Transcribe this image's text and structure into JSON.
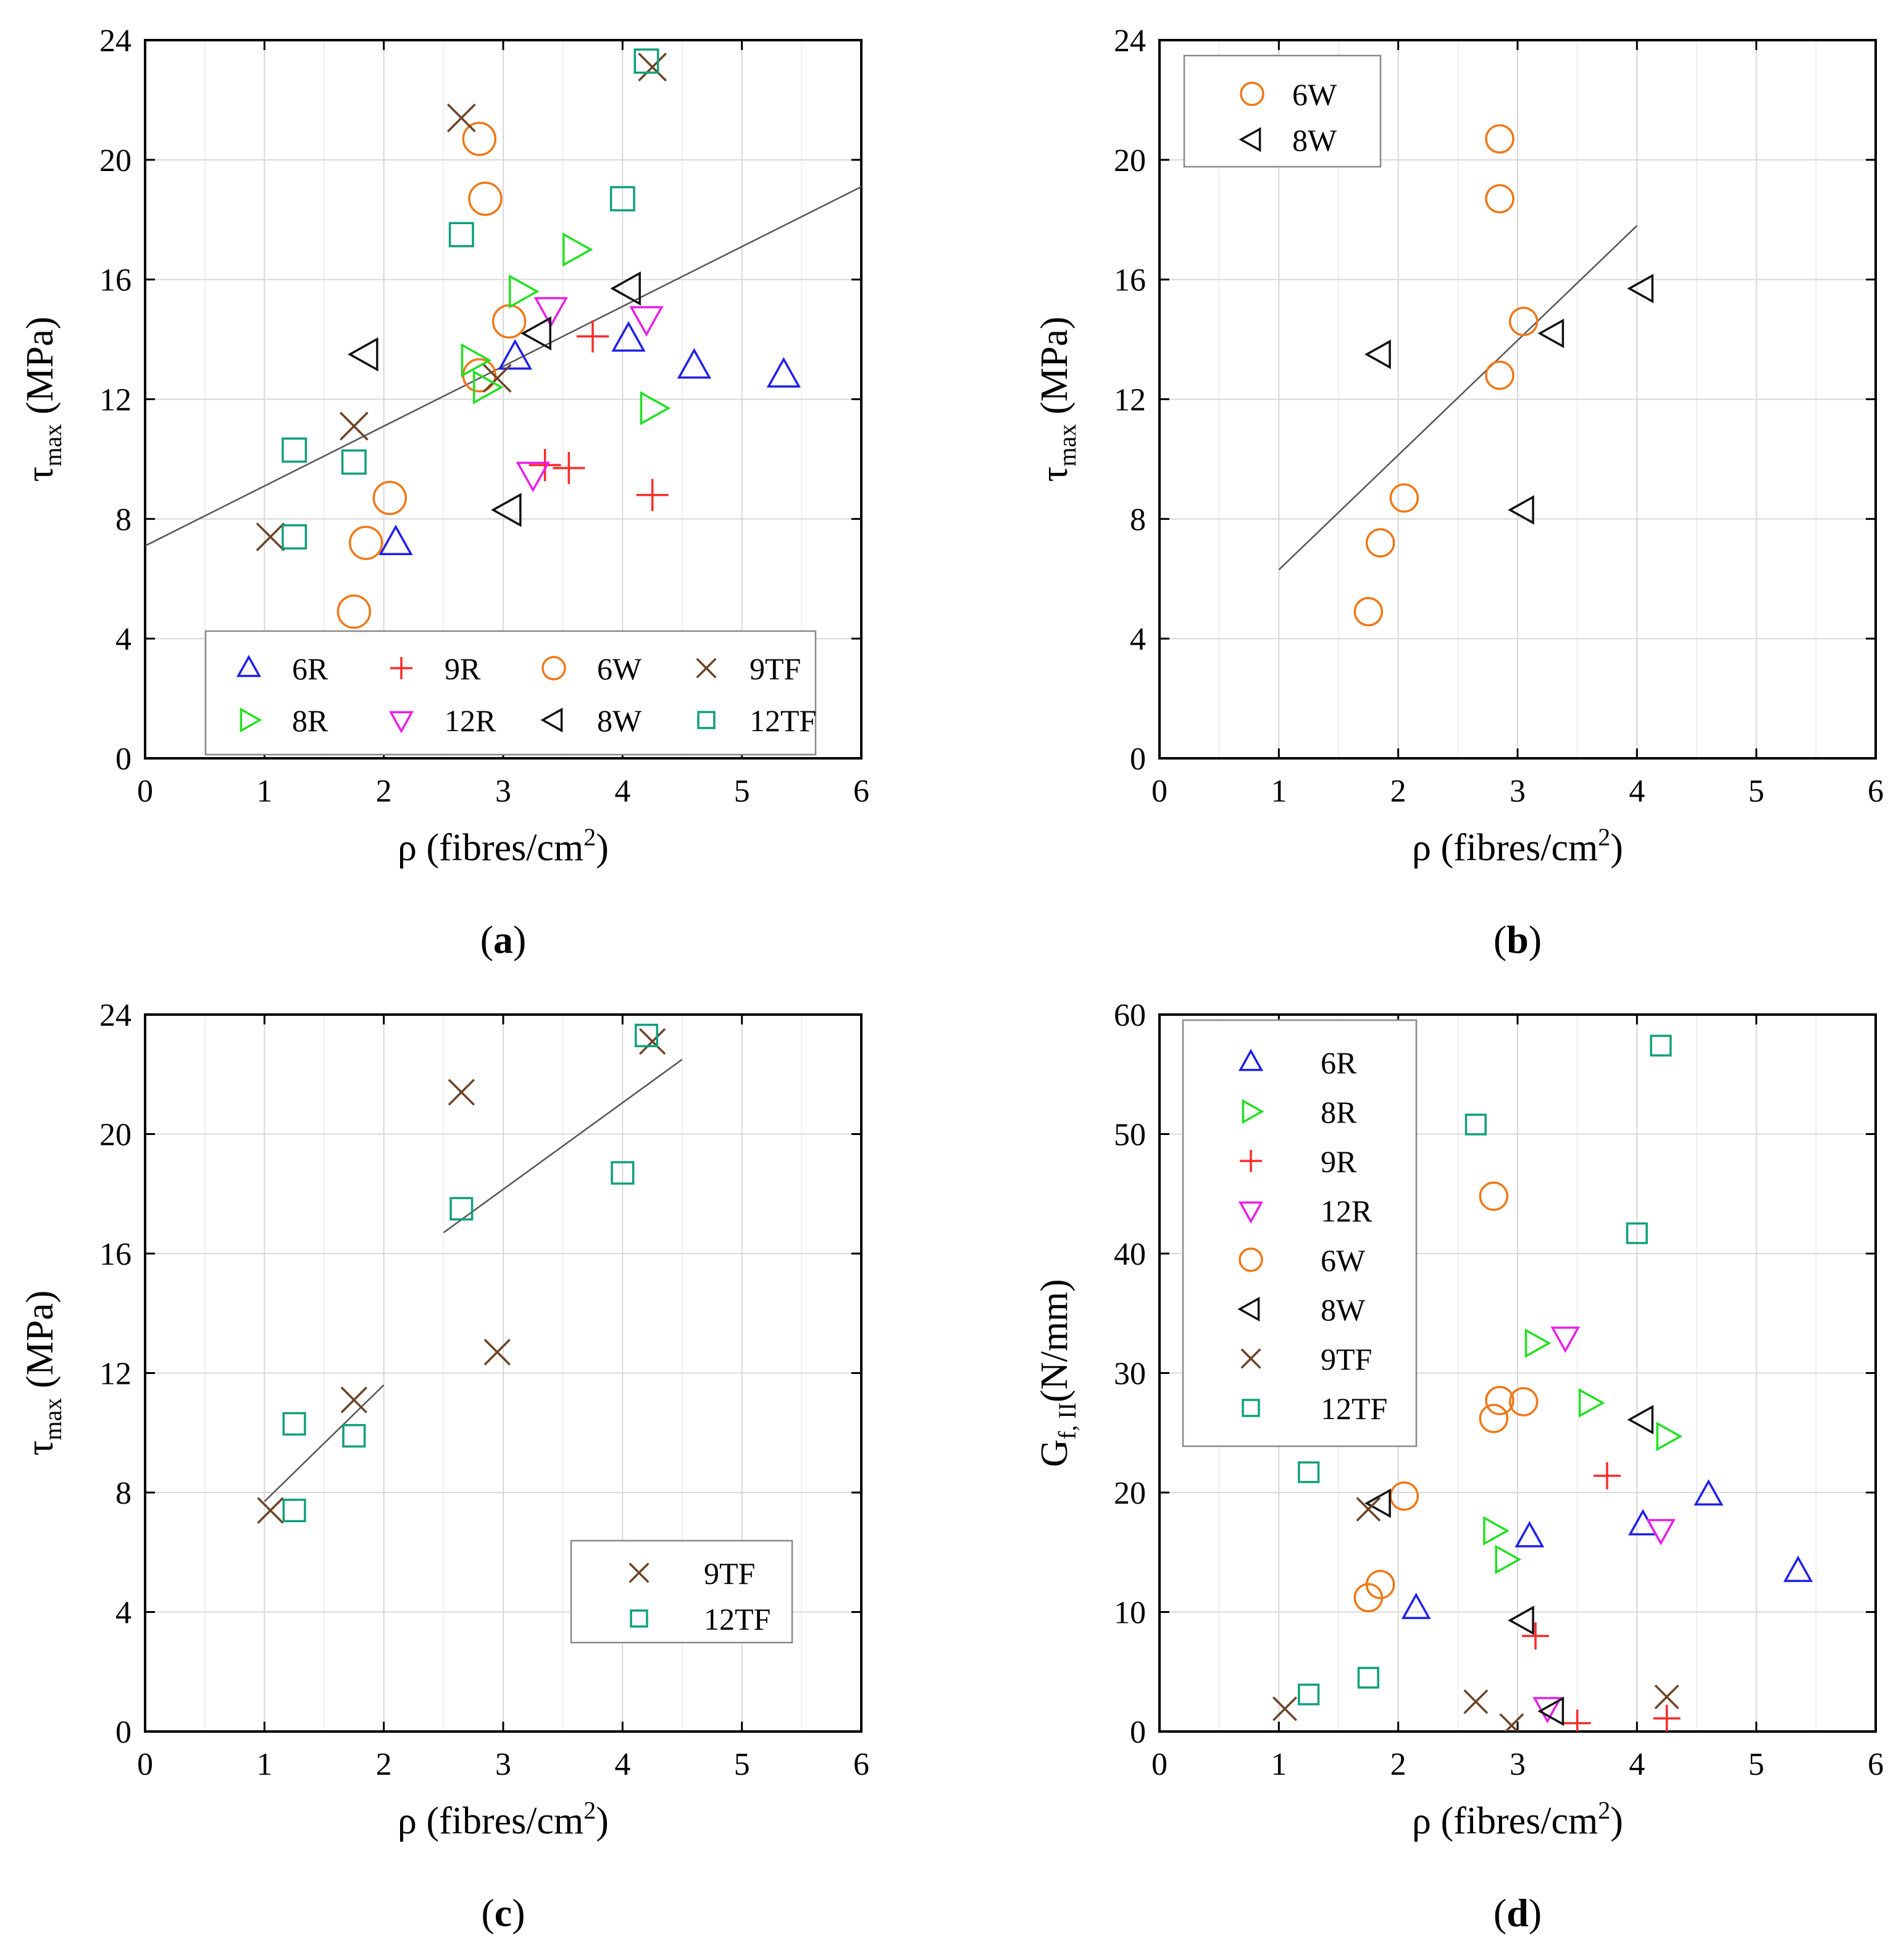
{
  "colors": {
    "6R": "#1f1fe8",
    "8R": "#22e022",
    "9R": "#ff2a2a",
    "12R": "#e81ee8",
    "6W": "#f07818",
    "8W": "#111111",
    "9TF": "#6b4226",
    "12TF": "#10a078",
    "fit": "#555555",
    "grid": "#d8d8d8"
  },
  "series_markers": {
    "6R": "triangle-up",
    "8R": "triangle-right",
    "9R": "plus",
    "12R": "triangle-down",
    "6W": "circle",
    "8W": "triangle-left",
    "9TF": "cross",
    "12TF": "square"
  },
  "chart_data": [
    {
      "id": "a",
      "type": "scatter",
      "caption_prefix": "(",
      "caption_letter": "a",
      "caption_suffix": ")",
      "xlabel_main": "ρ (fibres/cm",
      "xlabel_sup": "2",
      "xlabel_end": ")",
      "ylabel_main": "τ",
      "ylabel_sub": "max",
      "ylabel_end": " (MPa)",
      "xlim": [
        0,
        6
      ],
      "ylim": [
        0,
        24
      ],
      "xticks": [
        0,
        1,
        2,
        3,
        4,
        5,
        6
      ],
      "yticks": [
        0,
        4,
        8,
        12,
        16,
        20,
        24
      ],
      "x_tick_labels": [
        "0",
        "1",
        "2",
        "3",
        "4",
        "5",
        "6"
      ],
      "y_tick_labels": [
        "0",
        "4",
        "8",
        "12",
        "16",
        "20",
        "24"
      ],
      "grid": true,
      "legend_position": "bottom",
      "legend_columns": 4,
      "legend": [
        "6R",
        "9R",
        "6W",
        "9TF",
        "8R",
        "12R",
        "8W",
        "12TF"
      ],
      "fit_lines": [
        {
          "x": [
            0,
            6
          ],
          "y": [
            7.1,
            19.1
          ]
        }
      ],
      "series": [
        {
          "name": "6R",
          "points": [
            [
              2.1,
              7.2
            ],
            [
              3.1,
              13.4
            ],
            [
              4.05,
              14.0
            ],
            [
              4.6,
              13.1
            ],
            [
              5.35,
              12.8
            ]
          ]
        },
        {
          "name": "9R",
          "points": [
            [
              3.35,
              9.8
            ],
            [
              3.55,
              9.7
            ],
            [
              3.75,
              14.1
            ],
            [
              4.25,
              8.8
            ]
          ]
        },
        {
          "name": "6W",
          "points": [
            [
              1.75,
              4.9
            ],
            [
              1.85,
              7.2
            ],
            [
              2.05,
              8.7
            ],
            [
              2.8,
              12.8
            ],
            [
              2.85,
              18.7
            ],
            [
              2.8,
              20.7
            ],
            [
              3.05,
              14.6
            ]
          ]
        },
        {
          "name": "9TF",
          "points": [
            [
              1.05,
              7.4
            ],
            [
              1.75,
              11.1
            ],
            [
              2.65,
              21.4
            ],
            [
              2.95,
              12.7
            ],
            [
              4.25,
              23.1
            ]
          ]
        },
        {
          "name": "8R",
          "points": [
            [
              2.75,
              13.3
            ],
            [
              2.85,
              12.4
            ],
            [
              3.15,
              15.6
            ],
            [
              3.6,
              17.0
            ],
            [
              4.25,
              11.7
            ]
          ]
        },
        {
          "name": "12R",
          "points": [
            [
              3.25,
              9.5
            ],
            [
              3.4,
              15.0
            ],
            [
              4.2,
              14.7
            ]
          ]
        },
        {
          "name": "8W",
          "points": [
            [
              1.85,
              13.5
            ],
            [
              3.05,
              8.3
            ],
            [
              3.3,
              14.2
            ],
            [
              4.05,
              15.7
            ]
          ]
        },
        {
          "name": "12TF",
          "points": [
            [
              1.25,
              7.4
            ],
            [
              1.25,
              10.3
            ],
            [
              1.75,
              9.9
            ],
            [
              2.65,
              17.5
            ],
            [
              4.0,
              18.7
            ],
            [
              4.2,
              23.3
            ]
          ]
        }
      ]
    },
    {
      "id": "b",
      "type": "scatter",
      "caption_prefix": "(",
      "caption_letter": "b",
      "caption_suffix": ")",
      "xlabel_main": "ρ (fibres/cm",
      "xlabel_sup": "2",
      "xlabel_end": ")",
      "ylabel_main": "τ",
      "ylabel_sub": "max",
      "ylabel_end": " (MPa)",
      "xlim": [
        0,
        6
      ],
      "ylim": [
        0,
        24
      ],
      "xticks": [
        0,
        1,
        2,
        3,
        4,
        5,
        6
      ],
      "yticks": [
        0,
        4,
        8,
        12,
        16,
        20,
        24
      ],
      "x_tick_labels": [
        "0",
        "1",
        "2",
        "3",
        "4",
        "5",
        "6"
      ],
      "y_tick_labels": [
        "0",
        "4",
        "8",
        "12",
        "16",
        "20",
        "24"
      ],
      "grid": true,
      "legend_position": "top-left",
      "legend_columns": 1,
      "legend": [
        "6W",
        "8W"
      ],
      "fit_lines": [
        {
          "x": [
            1.0,
            4.0
          ],
          "y": [
            6.3,
            17.8
          ]
        }
      ],
      "series": [
        {
          "name": "6W",
          "points": [
            [
              1.75,
              4.9
            ],
            [
              1.85,
              7.2
            ],
            [
              2.05,
              8.7
            ],
            [
              2.85,
              12.8
            ],
            [
              2.85,
              18.7
            ],
            [
              2.85,
              20.7
            ],
            [
              3.05,
              14.6
            ]
          ]
        },
        {
          "name": "8W",
          "points": [
            [
              1.85,
              13.5
            ],
            [
              3.05,
              8.3
            ],
            [
              3.3,
              14.2
            ],
            [
              4.05,
              15.7
            ]
          ]
        }
      ]
    },
    {
      "id": "c",
      "type": "scatter",
      "caption_prefix": "(",
      "caption_letter": "c",
      "caption_suffix": ")",
      "xlabel_main": "ρ (fibres/cm",
      "xlabel_sup": "2",
      "xlabel_end": ")",
      "ylabel_main": "τ",
      "ylabel_sub": "max",
      "ylabel_end": " (MPa)",
      "xlim": [
        0,
        6
      ],
      "ylim": [
        0,
        24
      ],
      "xticks": [
        0,
        1,
        2,
        3,
        4,
        5,
        6
      ],
      "yticks": [
        0,
        4,
        8,
        12,
        16,
        20,
        24
      ],
      "x_tick_labels": [
        "0",
        "1",
        "2",
        "3",
        "4",
        "5",
        "6"
      ],
      "y_tick_labels": [
        "0",
        "4",
        "8",
        "12",
        "16",
        "20",
        "24"
      ],
      "grid": true,
      "legend_position": "bottom-right",
      "legend_columns": 1,
      "legend": [
        "9TF",
        "12TF"
      ],
      "fit_lines": [
        {
          "x": [
            1.0,
            2.0
          ],
          "y": [
            7.7,
            11.6
          ]
        },
        {
          "x": [
            2.5,
            4.5
          ],
          "y": [
            16.7,
            22.5
          ]
        }
      ],
      "series": [
        {
          "name": "9TF",
          "points": [
            [
              1.05,
              7.4
            ],
            [
              1.75,
              11.1
            ],
            [
              2.65,
              21.4
            ],
            [
              2.95,
              12.7
            ],
            [
              4.25,
              23.1
            ]
          ]
        },
        {
          "name": "12TF",
          "points": [
            [
              1.25,
              7.4
            ],
            [
              1.25,
              10.3
            ],
            [
              1.75,
              9.9
            ],
            [
              2.65,
              17.5
            ],
            [
              4.0,
              18.7
            ],
            [
              4.2,
              23.3
            ]
          ]
        }
      ]
    },
    {
      "id": "d",
      "type": "scatter",
      "caption_prefix": "(",
      "caption_letter": "d",
      "caption_suffix": ")",
      "xlabel_main": "ρ (fibres/cm",
      "xlabel_sup": "2",
      "xlabel_end": ")",
      "ylabel_main": "G",
      "ylabel_sub": "f, II",
      "ylabel_end": "(N/mm)",
      "xlim": [
        0,
        6
      ],
      "ylim": [
        0,
        60
      ],
      "xticks": [
        0,
        1,
        2,
        3,
        4,
        5,
        6
      ],
      "yticks": [
        0,
        10,
        20,
        30,
        40,
        50,
        60
      ],
      "x_tick_labels": [
        "0",
        "1",
        "2",
        "3",
        "4",
        "5",
        "6"
      ],
      "y_tick_labels": [
        "0",
        "10",
        "20",
        "30",
        "40",
        "50",
        "60"
      ],
      "grid": true,
      "legend_position": "top-left",
      "legend_columns": 1,
      "legend": [
        "6R",
        "8R",
        "9R",
        "12R",
        "6W",
        "8W",
        "9TF",
        "12TF"
      ],
      "fit_lines": [],
      "series": [
        {
          "name": "6R",
          "points": [
            [
              2.15,
              10.3
            ],
            [
              3.1,
              16.3
            ],
            [
              4.05,
              17.3
            ],
            [
              4.6,
              19.8
            ],
            [
              5.35,
              13.4
            ]
          ]
        },
        {
          "name": "8R",
          "points": [
            [
              2.8,
              16.8
            ],
            [
              2.9,
              14.4
            ],
            [
              3.15,
              32.5
            ],
            [
              3.6,
              27.5
            ],
            [
              4.25,
              24.7
            ]
          ]
        },
        {
          "name": "9R",
          "points": [
            [
              3.15,
              8.0
            ],
            [
              3.5,
              0.7
            ],
            [
              3.75,
              21.4
            ],
            [
              4.25,
              1.1
            ]
          ]
        },
        {
          "name": "12R",
          "points": [
            [
              3.25,
              2.0
            ],
            [
              3.4,
              33.0
            ],
            [
              4.2,
              16.9
            ]
          ]
        },
        {
          "name": "6W",
          "points": [
            [
              1.75,
              11.2
            ],
            [
              1.85,
              12.3
            ],
            [
              2.05,
              19.7
            ],
            [
              2.8,
              44.8
            ],
            [
              2.85,
              27.7
            ],
            [
              2.8,
              26.2
            ],
            [
              3.05,
              27.6
            ]
          ]
        },
        {
          "name": "8W",
          "points": [
            [
              1.85,
              19.1
            ],
            [
              3.05,
              9.3
            ],
            [
              3.3,
              1.7
            ],
            [
              4.05,
              26.1
            ]
          ]
        },
        {
          "name": "9TF",
          "points": [
            [
              1.05,
              1.9
            ],
            [
              1.75,
              18.6
            ],
            [
              2.65,
              2.5
            ],
            [
              2.95,
              0.5
            ],
            [
              4.25,
              2.9
            ]
          ]
        },
        {
          "name": "12TF",
          "points": [
            [
              1.25,
              3.1
            ],
            [
              1.25,
              21.7
            ],
            [
              1.75,
              4.5
            ],
            [
              2.65,
              50.8
            ],
            [
              4.0,
              41.7
            ],
            [
              4.2,
              57.4
            ]
          ]
        }
      ]
    }
  ]
}
